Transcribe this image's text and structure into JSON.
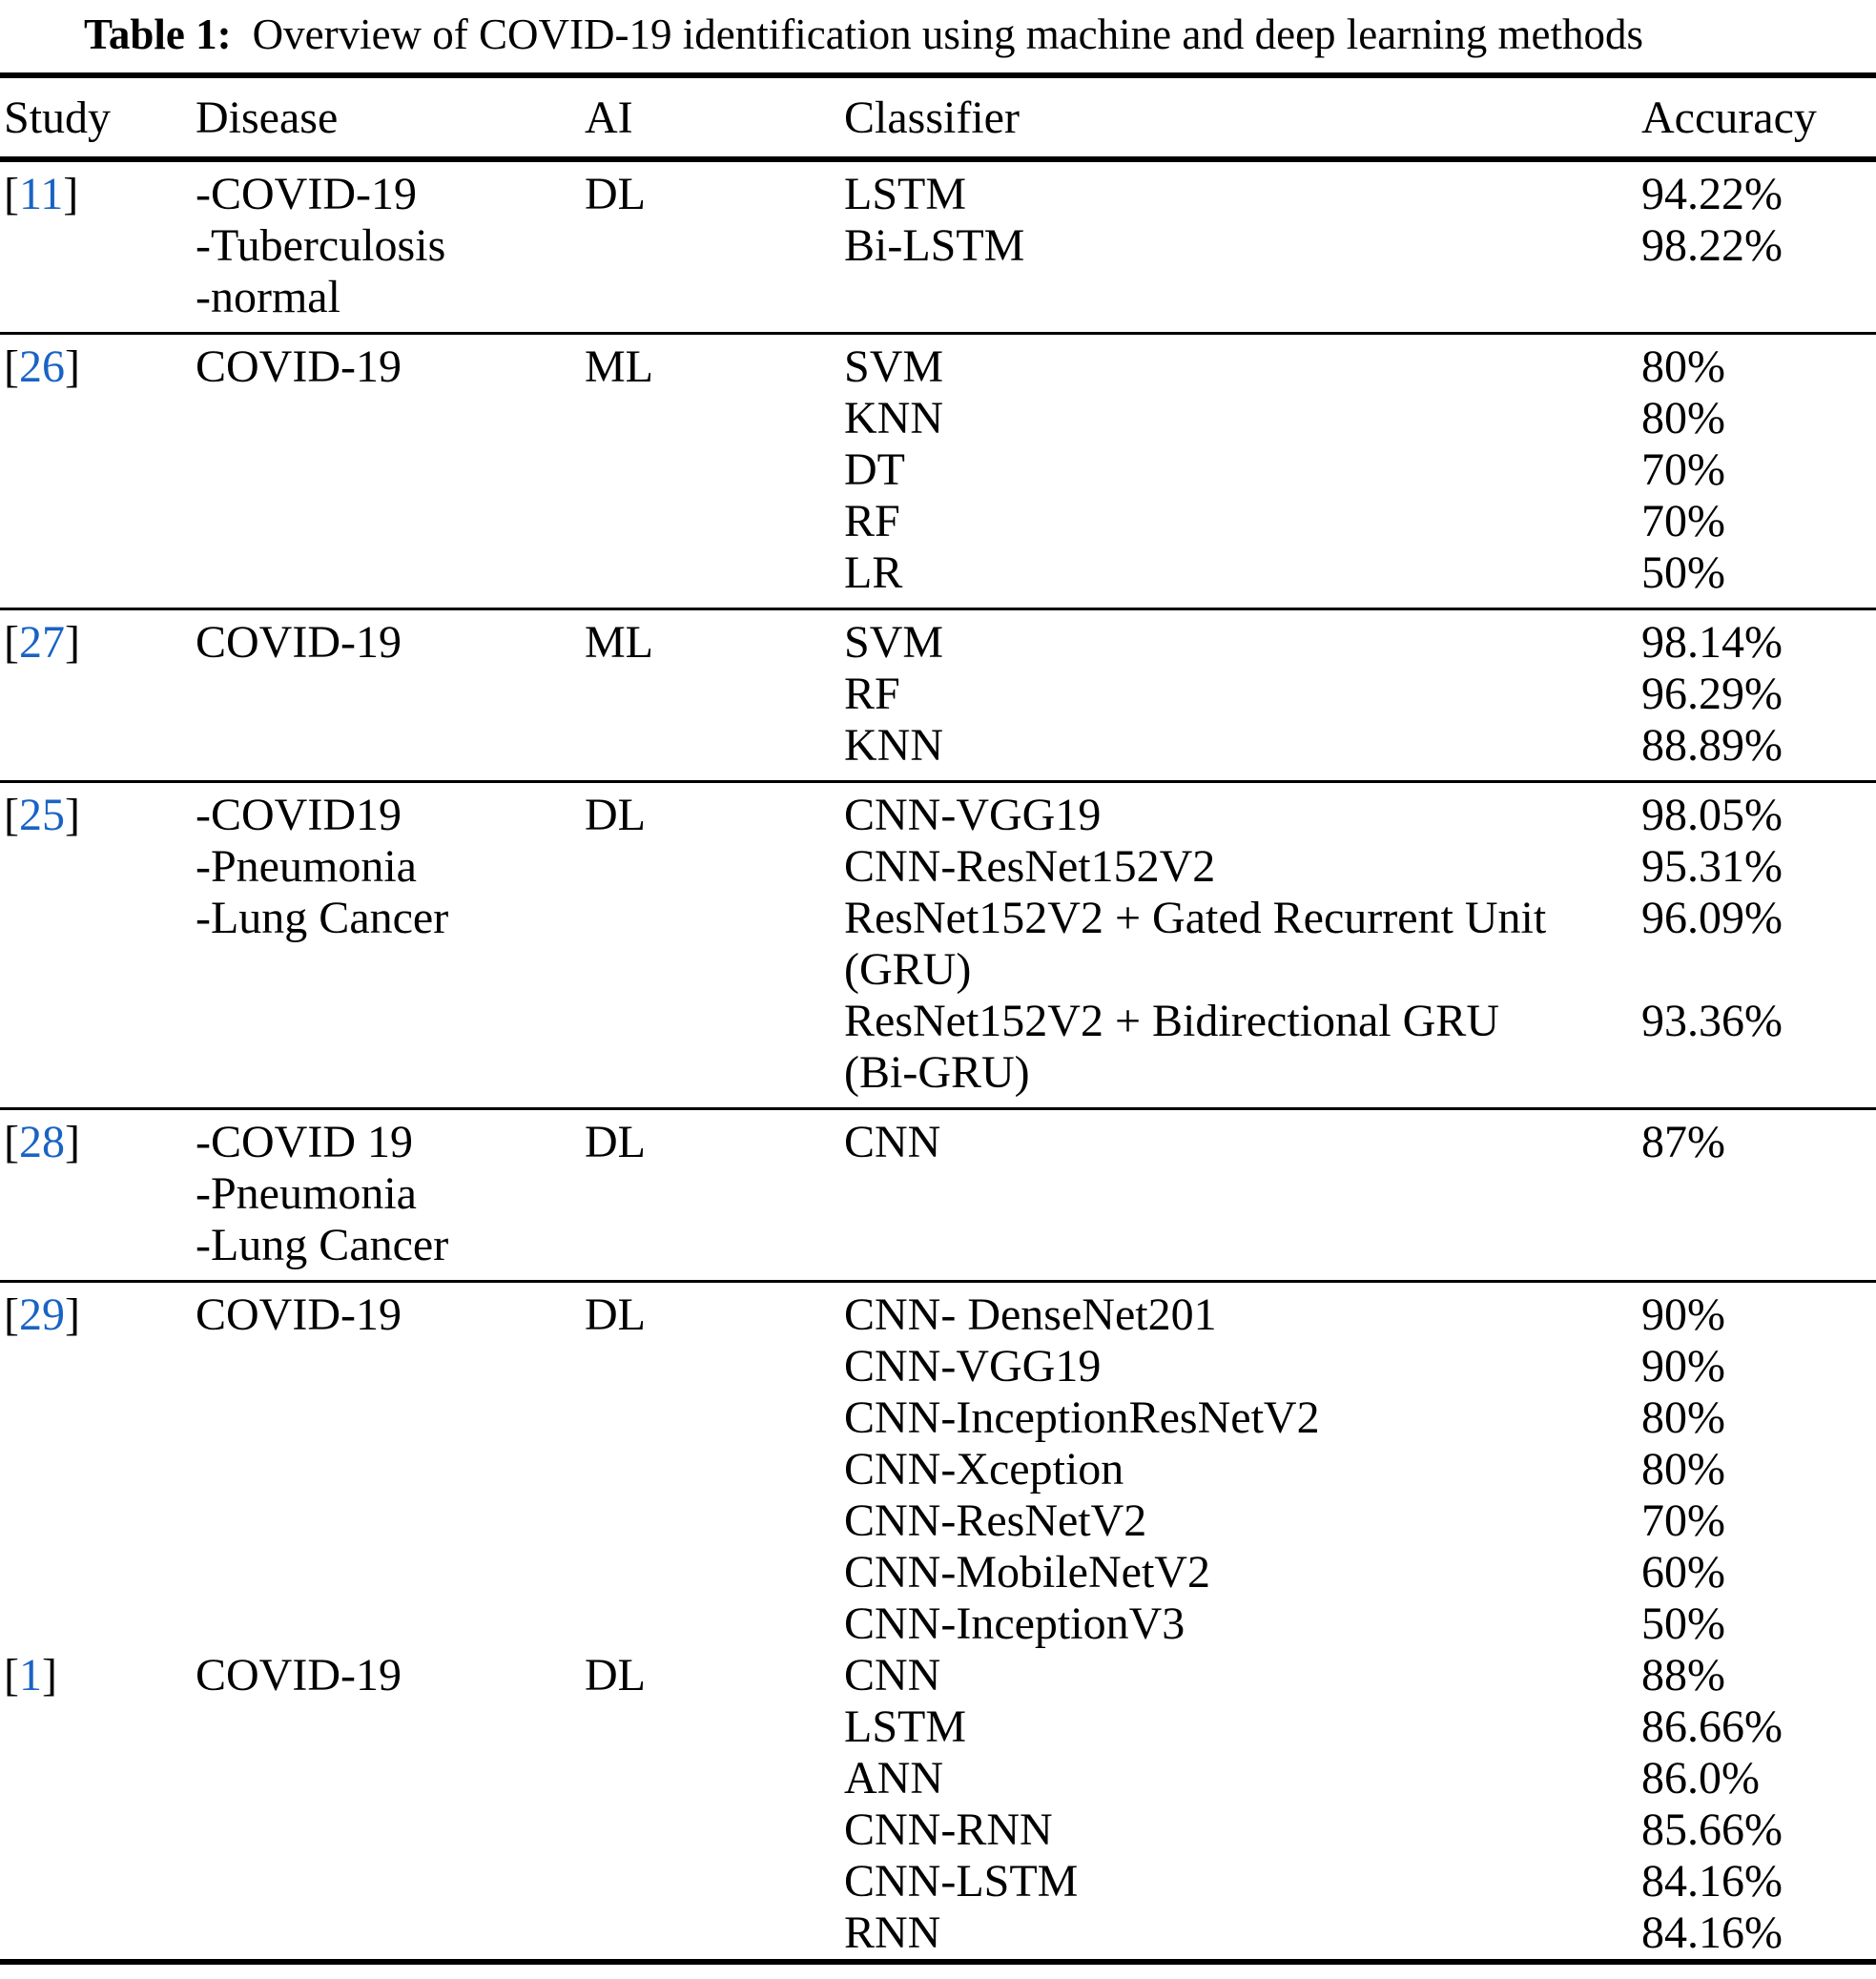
{
  "title": {
    "label": "Table 1:",
    "text": "Overview of COVID-19 identification using machine and deep learning methods"
  },
  "columns": [
    "Study",
    "Disease",
    "AI",
    "Classifier",
    "Accuracy"
  ],
  "citation_brackets": [
    "[",
    "]"
  ],
  "colors": {
    "citation_blue": "#1a63c4",
    "text": "#000000",
    "rule": "#000000",
    "background": "#ffffff"
  },
  "rows": [
    {
      "study": "11",
      "disease": [
        "-COVID-19",
        "-Tuberculosis",
        "-normal"
      ],
      "ai": "DL",
      "classifier": [
        "LSTM",
        "Bi-LSTM"
      ],
      "accuracy": [
        "94.22%",
        "98.22%"
      ],
      "rule_after": true
    },
    {
      "study": "26",
      "disease": [
        "COVID-19"
      ],
      "ai": "ML",
      "classifier": [
        "SVM",
        "KNN",
        "DT",
        "RF",
        "LR"
      ],
      "accuracy": [
        "80%",
        "80%",
        "70%",
        "70%",
        "50%"
      ],
      "rule_after": true
    },
    {
      "study": "27",
      "disease": [
        "COVID-19"
      ],
      "ai": "ML",
      "classifier": [
        "SVM",
        "RF",
        "KNN"
      ],
      "accuracy": [
        "98.14%",
        "96.29%",
        "88.89%"
      ],
      "rule_after": true
    },
    {
      "study": "25",
      "disease": [
        "-COVID19",
        "-Pneumonia",
        "-Lung Cancer"
      ],
      "ai": "DL",
      "classifier": [
        "CNN-VGG19",
        "CNN-ResNet152V2",
        "ResNet152V2 + Gated Recurrent Unit",
        "(GRU)",
        "ResNet152V2 + Bidirectional GRU",
        "(Bi-GRU)"
      ],
      "accuracy": [
        "98.05%",
        "95.31%",
        "96.09%",
        "",
        "93.36%",
        ""
      ],
      "rule_after": true
    },
    {
      "study": "28",
      "disease": [
        "-COVID 19",
        "-Pneumonia",
        "-Lung Cancer"
      ],
      "ai": "DL",
      "classifier": [
        "CNN"
      ],
      "accuracy": [
        "87%"
      ],
      "rule_after": true
    },
    {
      "study": "29",
      "disease": [
        "COVID-19"
      ],
      "ai": "DL",
      "classifier": [
        "CNN- DenseNet201",
        "CNN-VGG19",
        "CNN-InceptionResNetV2",
        "CNN-Xception",
        "CNN-ResNetV2",
        "CNN-MobileNetV2",
        "CNN-InceptionV3"
      ],
      "accuracy": [
        "90%",
        "90%",
        "80%",
        "80%",
        "70%",
        "60%",
        "50%"
      ],
      "rule_after": false
    },
    {
      "study": "1",
      "disease": [
        "COVID-19"
      ],
      "ai": "DL",
      "classifier": [
        "CNN",
        "LSTM",
        "ANN",
        "CNN-RNN",
        "CNN-LSTM",
        "RNN"
      ],
      "accuracy": [
        "88%",
        "86.66%",
        "86.0%",
        "85.66%",
        "84.16%",
        "84.16%"
      ],
      "rule_after": false
    }
  ]
}
